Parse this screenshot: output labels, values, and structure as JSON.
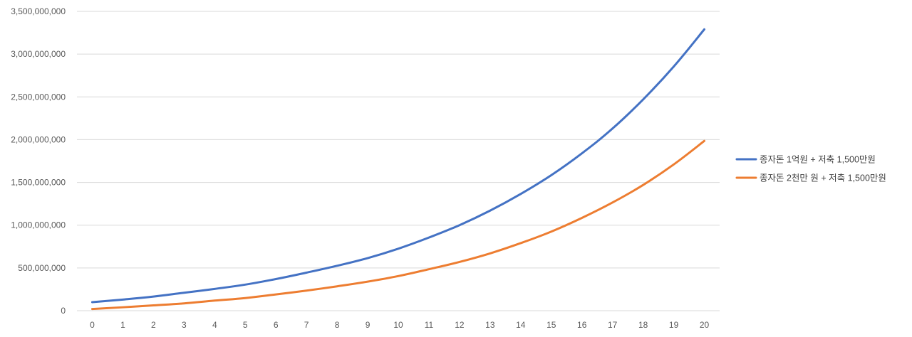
{
  "chart_data": {
    "type": "line",
    "title": "",
    "xlabel": "",
    "ylabel": "",
    "x": [
      0,
      1,
      2,
      3,
      4,
      5,
      6,
      7,
      8,
      9,
      10,
      11,
      12,
      13,
      14,
      15,
      16,
      17,
      18,
      19,
      20
    ],
    "x_tick_labels": [
      "0",
      "1",
      "2",
      "3",
      "4",
      "5",
      "6",
      "7",
      "8",
      "9",
      "10",
      "11",
      "12",
      "13",
      "14",
      "15",
      "16",
      "17",
      "18",
      "19",
      "20"
    ],
    "ylim": [
      0,
      3500000000
    ],
    "y_ticks": [
      0,
      500000000,
      1000000000,
      1500000000,
      2000000000,
      2500000000,
      3000000000,
      3500000000
    ],
    "y_tick_labels": [
      "0",
      "500,000,000",
      "1,000,000,000",
      "1,500,000,000",
      "2,000,000,000",
      "2,500,000,000",
      "3,000,000,000",
      "3,500,000,000"
    ],
    "grid": true,
    "legend_position": "right",
    "series": [
      {
        "name": "종자돈 1억원 + 저축 1,500만원",
        "color": "#4472C4",
        "values": [
          100000000,
          130000000,
          165000000,
          210000000,
          255000000,
          305000000,
          370000000,
          445000000,
          525000000,
          615000000,
          725000000,
          855000000,
          1000000000,
          1170000000,
          1365000000,
          1585000000,
          1840000000,
          2130000000,
          2470000000,
          2855000000,
          3290000000
        ]
      },
      {
        "name": "종자돈 2천만 원 + 저축 1,500만원",
        "color": "#ED7D31",
        "values": [
          20000000,
          40000000,
          62000000,
          85000000,
          118000000,
          148000000,
          190000000,
          235000000,
          285000000,
          340000000,
          405000000,
          485000000,
          570000000,
          670000000,
          790000000,
          925000000,
          1085000000,
          1265000000,
          1470000000,
          1710000000,
          1985000000
        ]
      }
    ]
  }
}
